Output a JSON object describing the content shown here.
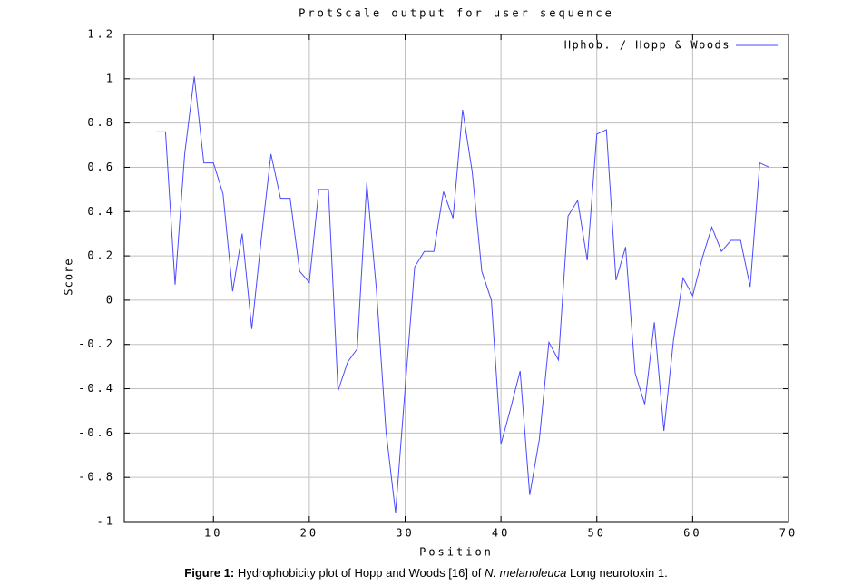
{
  "chart_data": {
    "type": "line",
    "title": "ProtScale output for user sequence",
    "x_label": "Position",
    "y_label": "Score",
    "x": [
      4,
      5,
      6,
      7,
      8,
      9,
      10,
      11,
      12,
      13,
      14,
      15,
      16,
      17,
      18,
      19,
      20,
      21,
      22,
      23,
      24,
      25,
      26,
      27,
      28,
      29,
      30,
      31,
      32,
      33,
      34,
      35,
      36,
      37,
      38,
      39,
      40,
      41,
      42,
      43,
      44,
      45,
      46,
      47,
      48,
      49,
      50,
      51,
      52,
      53,
      54,
      55,
      56,
      57,
      58,
      59,
      60,
      61,
      62,
      63,
      64,
      65,
      66,
      67,
      68
    ],
    "series": [
      {
        "name": "Hphob. / Hopp & Woods",
        "color": "#4a4aff",
        "values": [
          0.76,
          0.76,
          0.07,
          0.66,
          1.01,
          0.62,
          0.62,
          0.48,
          0.04,
          0.3,
          -0.13,
          0.28,
          0.66,
          0.46,
          0.46,
          0.13,
          0.08,
          0.5,
          0.5,
          -0.41,
          -0.28,
          -0.22,
          0.53,
          0.05,
          -0.59,
          -0.96,
          -0.4,
          0.15,
          0.22,
          0.22,
          0.49,
          0.37,
          0.86,
          0.58,
          0.13,
          0.0,
          -0.65,
          -0.49,
          -0.32,
          -0.88,
          -0.63,
          -0.19,
          -0.27,
          0.38,
          0.45,
          0.18,
          0.75,
          0.77,
          0.09,
          0.24,
          -0.33,
          -0.47,
          -0.1,
          -0.59,
          -0.18,
          0.1,
          0.02,
          0.19,
          0.33,
          0.22,
          0.27,
          0.27,
          0.06,
          0.62,
          0.6
        ]
      }
    ],
    "xlim": [
      0.7,
      70
    ],
    "xticks": [
      10,
      20,
      30,
      40,
      50,
      60,
      70
    ],
    "ylim": [
      -1,
      1.2
    ],
    "yticks": [
      -1,
      -0.8,
      -0.6,
      -0.4,
      -0.2,
      0,
      0.2,
      0.4,
      0.6,
      0.8,
      1,
      1.2
    ],
    "grid": true,
    "legend": "top-right",
    "caption": {
      "label": "Figure 1:",
      "text_before": "Hydrophobicity plot of Hopp and Woods [16] of",
      "species": "N. melanoleuca",
      "text_after": "Long neurotoxin 1."
    }
  }
}
